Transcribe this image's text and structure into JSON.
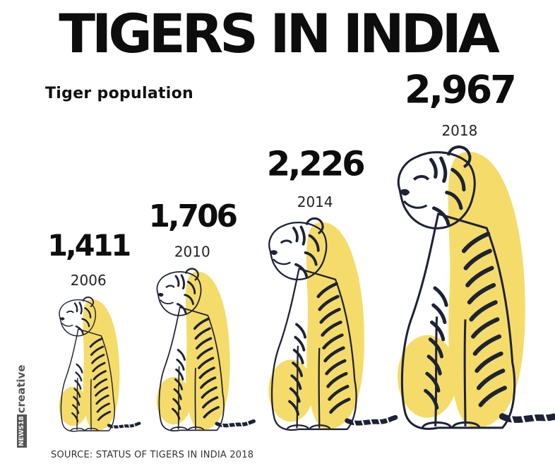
{
  "header": {
    "title": "TIGERS IN INDIA",
    "subtitle": "Tiger population"
  },
  "chart_data": {
    "type": "bar",
    "title": "TIGERS IN INDIA",
    "subtitle": "Tiger population",
    "categories": [
      "2006",
      "2010",
      "2014",
      "2018"
    ],
    "values": [
      1411,
      1706,
      2226,
      2967
    ],
    "value_labels": [
      "1,411",
      "1,706",
      "2,226",
      "2,967"
    ],
    "mark": "tiger-illustration",
    "grid": false,
    "colors": {
      "accent": "#f5dc6a",
      "ink": "#1e2235",
      "text": "#0d0d0d"
    }
  },
  "footer": {
    "source": "SOURCE: STATUS OF TIGERS IN INDIA 2018",
    "brand_badge": "NEWS18",
    "brand_name": "creative"
  }
}
